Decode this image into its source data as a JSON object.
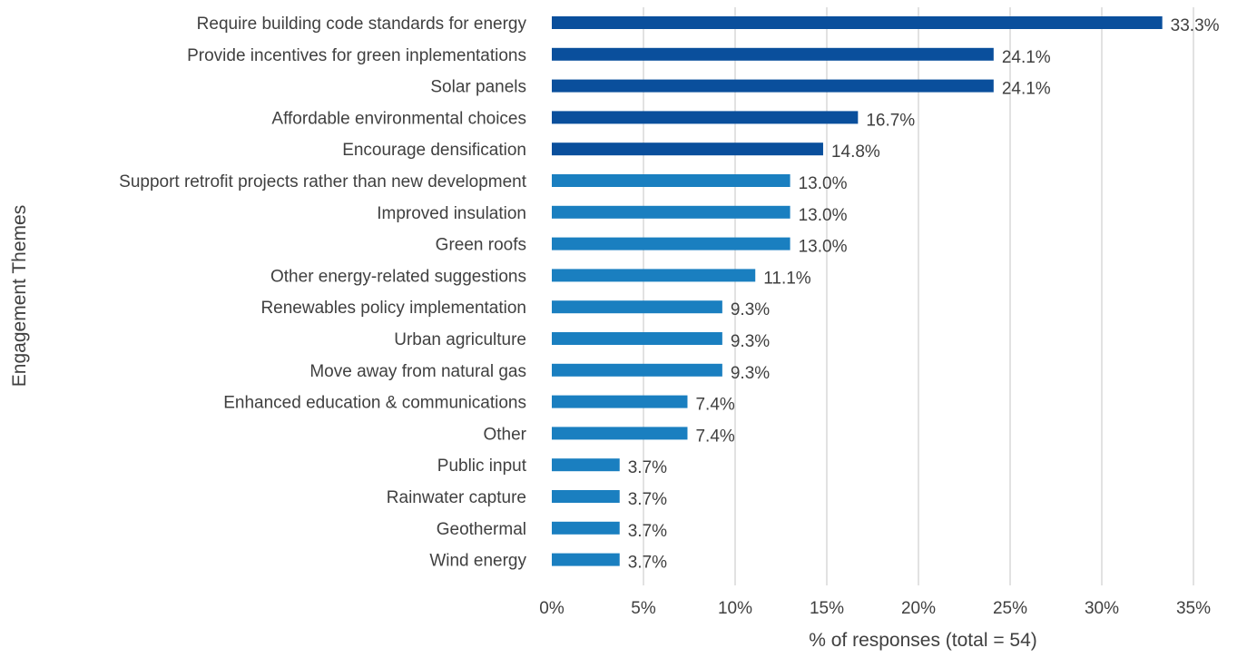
{
  "chart_data": {
    "type": "bar",
    "orientation": "horizontal",
    "title": "",
    "xlabel": "% of responses (total = 54)",
    "ylabel": "Engagement Themes",
    "xlim": [
      0,
      35
    ],
    "x_ticks": [
      0,
      5,
      10,
      15,
      20,
      25,
      30,
      35
    ],
    "x_tick_labels": [
      "0%",
      "5%",
      "10%",
      "15%",
      "20%",
      "25%",
      "30%",
      "35%"
    ],
    "grid": true,
    "legend": false,
    "colors": {
      "top_five": "#0a4f9c",
      "others": "#1a7fc0"
    },
    "categories": [
      "Require building code standards for energy",
      "Provide incentives for green inplementations",
      "Solar panels",
      "Affordable environmental choices",
      "Encourage densification",
      "Support retrofit projects rather than new development",
      "Improved insulation",
      "Green roofs",
      "Other energy-related suggestions",
      "Renewables policy implementation",
      "Urban agriculture",
      "Move away from natural gas",
      "Enhanced education & communications",
      "Other",
      "Public input",
      "Rainwater capture",
      "Geothermal",
      "Wind energy"
    ],
    "values": [
      33.3,
      24.1,
      24.1,
      16.7,
      14.8,
      13.0,
      13.0,
      13.0,
      11.1,
      9.3,
      9.3,
      9.3,
      7.4,
      7.4,
      3.7,
      3.7,
      3.7,
      3.7
    ],
    "value_labels": [
      "33.3%",
      "24.1%",
      "24.1%",
      "16.7%",
      "14.8%",
      "13.0%",
      "13.0%",
      "13.0%",
      "11.1%",
      "9.3%",
      "9.3%",
      "9.3%",
      "7.4%",
      "7.4%",
      "3.7%",
      "3.7%",
      "3.7%",
      "3.7%"
    ],
    "highlight_top_n": 5
  }
}
